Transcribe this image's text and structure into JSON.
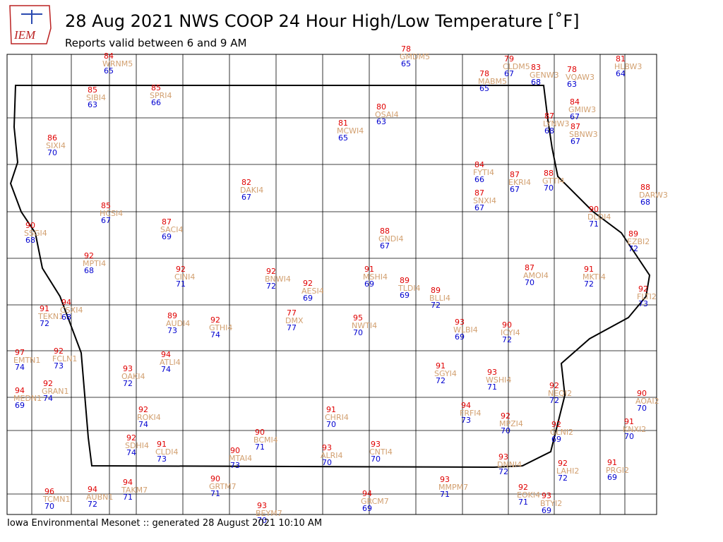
{
  "header": {
    "logo": "IEM",
    "title": "28 Aug 2021 NWS COOP 24 Hour High/Low Temperature [˚F]",
    "subtitle": "Reports valid between 6 and 9 AM"
  },
  "footer": "Iowa Environmental Mesonet :: generated 28 August 2021 10:10 AM",
  "stations": [
    {
      "high": "84",
      "id": "WRNM5",
      "low": "65"
    },
    {
      "high": "78",
      "id": "GMDM5",
      "low": "65"
    },
    {
      "high": "79",
      "id": "CLDM5",
      "low": "67"
    },
    {
      "high": "83",
      "id": "GENW3",
      "low": "68"
    },
    {
      "high": "78",
      "id": "VQAW3",
      "low": "63"
    },
    {
      "high": "81",
      "id": "HLBW3",
      "low": "64"
    },
    {
      "high": "78",
      "id": "MABM5",
      "low": "65"
    },
    {
      "high": "85",
      "id": "SIBI4",
      "low": "63"
    },
    {
      "high": "85",
      "id": "SPRI4",
      "low": "66"
    },
    {
      "high": "80",
      "id": "OSAI4",
      "low": "63"
    },
    {
      "high": "84",
      "id": "GMIW3",
      "low": "67"
    },
    {
      "high": "87",
      "id": "LYNW3",
      "low": "68"
    },
    {
      "high": "87",
      "id": "SBNW3",
      "low": "67"
    },
    {
      "high": "81",
      "id": "MCWI4",
      "low": "65"
    },
    {
      "high": "86",
      "id": "SIXI4",
      "low": "70"
    },
    {
      "high": "84",
      "id": "FYTI4",
      "low": "66"
    },
    {
      "high": "87",
      "id": "EKRI4",
      "low": "67"
    },
    {
      "high": "88",
      "id": "GTTI4",
      "low": "70"
    },
    {
      "high": "82",
      "id": "DAKI4",
      "low": "67"
    },
    {
      "high": "88",
      "id": "DARW3",
      "low": "68"
    },
    {
      "high": "87",
      "id": "SNXI4",
      "low": "67"
    },
    {
      "high": "85",
      "id": "HCSI4",
      "low": "67"
    },
    {
      "high": "90",
      "id": "DLDI4",
      "low": "71"
    },
    {
      "high": "87",
      "id": "SACI4",
      "low": "69"
    },
    {
      "high": "90",
      "id": "SSGI4",
      "low": "68"
    },
    {
      "high": "88",
      "id": "GNDI4",
      "low": "67"
    },
    {
      "high": "89",
      "id": "EZBI2",
      "low": "72"
    },
    {
      "high": "92",
      "id": "MPTI4",
      "low": "68"
    },
    {
      "high": "87",
      "id": "AMOI4",
      "low": "70"
    },
    {
      "high": "91",
      "id": "MKTI4",
      "low": "72"
    },
    {
      "high": "92",
      "id": "CINI4",
      "low": "71"
    },
    {
      "high": "92",
      "id": "BNWI4",
      "low": "72"
    },
    {
      "high": "91",
      "id": "MSHI4",
      "low": "69"
    },
    {
      "high": "92",
      "id": "AESI4",
      "low": "69"
    },
    {
      "high": "89",
      "id": "TLDI4",
      "low": "69"
    },
    {
      "high": "89",
      "id": "BLLI4",
      "low": "72"
    },
    {
      "high": "92",
      "id": "FLTI2",
      "low": "73"
    },
    {
      "high": "91",
      "id": "TEKN1",
      "low": "72"
    },
    {
      "high": "94",
      "id": "CSXI4",
      "low": "68"
    },
    {
      "high": "77",
      "id": "DMX",
      "low": "77"
    },
    {
      "high": "89",
      "id": "AUDI4",
      "low": "73"
    },
    {
      "high": "92",
      "id": "GTHI4",
      "low": "74"
    },
    {
      "high": "95",
      "id": "NWTI4",
      "low": "70"
    },
    {
      "high": "93",
      "id": "WLBI4",
      "low": "69"
    },
    {
      "high": "90",
      "id": "ICYI4",
      "low": "72"
    },
    {
      "high": "97",
      "id": "EMTN1",
      "low": "74"
    },
    {
      "high": "92",
      "id": "FCLN1",
      "low": "73"
    },
    {
      "high": "94",
      "id": "ATLI4",
      "low": "74"
    },
    {
      "high": "93",
      "id": "OAKI4",
      "low": "72"
    },
    {
      "high": "91",
      "id": "SGYI4",
      "low": "72"
    },
    {
      "high": "93",
      "id": "WSHI4",
      "low": "71"
    },
    {
      "high": "92",
      "id": "GRAN1",
      "low": "74"
    },
    {
      "high": "94",
      "id": "MEDN1",
      "low": "69"
    },
    {
      "high": "92",
      "id": "NEQI2",
      "low": "72"
    },
    {
      "high": "90",
      "id": "AOAI2",
      "low": "70"
    },
    {
      "high": "94",
      "id": "FRFI4",
      "low": "73"
    },
    {
      "high": "92",
      "id": "ROKI4",
      "low": "74"
    },
    {
      "high": "91",
      "id": "CHRI4",
      "low": "70"
    },
    {
      "high": "92",
      "id": "MPZI4",
      "low": "70"
    },
    {
      "high": "91",
      "id": "KNXI2",
      "low": "70"
    },
    {
      "high": "92",
      "id": "GLNI2",
      "low": "69"
    },
    {
      "high": "90",
      "id": "BCMI4",
      "low": "71"
    },
    {
      "high": "92",
      "id": "SDHI4",
      "low": "74"
    },
    {
      "high": "91",
      "id": "CLDI4",
      "low": "73"
    },
    {
      "high": "90",
      "id": "MTAI4",
      "low": "73"
    },
    {
      "high": "93",
      "id": "ALRI4",
      "low": "70"
    },
    {
      "high": "93",
      "id": "CNTI4",
      "low": "70"
    },
    {
      "high": "93",
      "id": "DNNI4",
      "low": "72"
    },
    {
      "high": "92",
      "id": "LAHI2",
      "low": "72"
    },
    {
      "high": "91",
      "id": "PRGI2",
      "low": "69"
    },
    {
      "high": "94",
      "id": "TAKM7",
      "low": "71"
    },
    {
      "high": "90",
      "id": "GRTM7",
      "low": "71"
    },
    {
      "high": "93",
      "id": "MMPM7",
      "low": "71"
    },
    {
      "high": "96",
      "id": "TCMN1",
      "low": "70"
    },
    {
      "high": "94",
      "id": "AUBN1",
      "low": "72"
    },
    {
      "high": "94",
      "id": "GRCM7",
      "low": "69"
    },
    {
      "high": "92",
      "id": "EOKI4",
      "low": "71"
    },
    {
      "high": "93",
      "id": "BTYI2",
      "low": "69"
    },
    {
      "high": "93",
      "id": "BEYM7",
      "low": "70"
    }
  ]
}
